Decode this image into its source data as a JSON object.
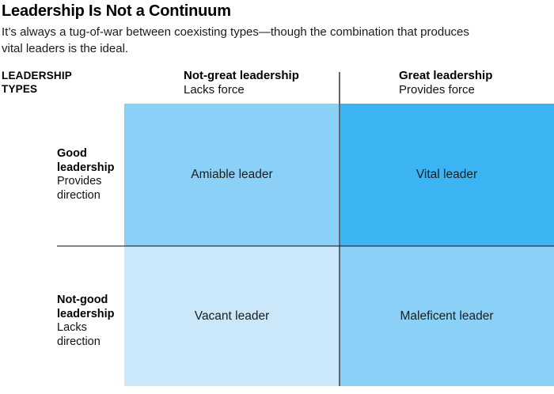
{
  "header": {
    "title": "Leadership Is Not a Continuum",
    "subtitle": "It’s always a tug-of-war between coexisting types—though the combination that produces vital leaders is the ideal."
  },
  "matrix": {
    "corner_label": "LEADERSHIP TYPES",
    "columns": [
      {
        "label": "Not-great leadership",
        "sublabel": "Lacks force"
      },
      {
        "label": "Great leadership",
        "sublabel": "Provides force"
      }
    ],
    "rows": [
      {
        "label": "Good leadership",
        "sublabel": "Provides direction"
      },
      {
        "label": "Not-good leadership",
        "sublabel": "Lacks direction"
      }
    ],
    "quadrants": [
      {
        "name": "amiable",
        "label": "Amiable leader",
        "color": "#8BD1F7"
      },
      {
        "name": "vital",
        "label": "Vital leader",
        "color": "#3CB4F4"
      },
      {
        "name": "vacant",
        "label": "Vacant leader",
        "color": "#CBE8FA"
      },
      {
        "name": "maleficent",
        "label": "Maleficent leader",
        "color": "#8BD1F7"
      }
    ]
  }
}
